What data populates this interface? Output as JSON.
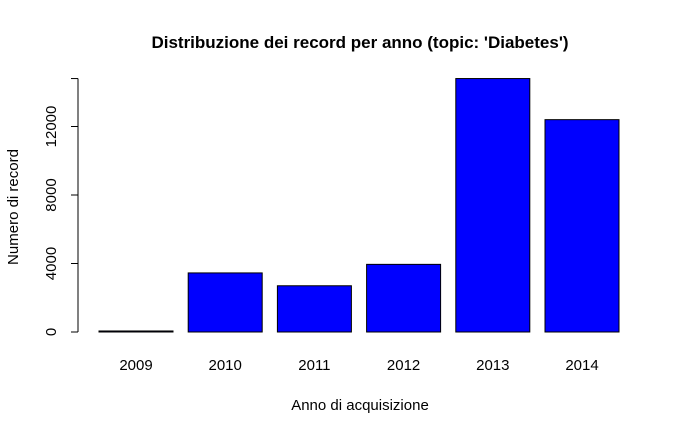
{
  "chart_data": {
    "type": "bar",
    "title": "Distribuzione dei record per anno (topic: 'Diabetes')",
    "xlabel": "Anno di acquisizione",
    "ylabel": "Numero di record",
    "categories": [
      "2009",
      "2010",
      "2011",
      "2012",
      "2013",
      "2014"
    ],
    "values": [
      60,
      3450,
      2700,
      3950,
      14800,
      12400
    ],
    "ylim": [
      0,
      14800
    ],
    "yticks": [
      0,
      4000,
      8000,
      12000
    ],
    "ytick_labels": [
      "0",
      "4000",
      "8000",
      "12000"
    ],
    "bar_color": "#0000ff",
    "bar_stroke": "#000000",
    "grid": false,
    "legend": "none"
  }
}
